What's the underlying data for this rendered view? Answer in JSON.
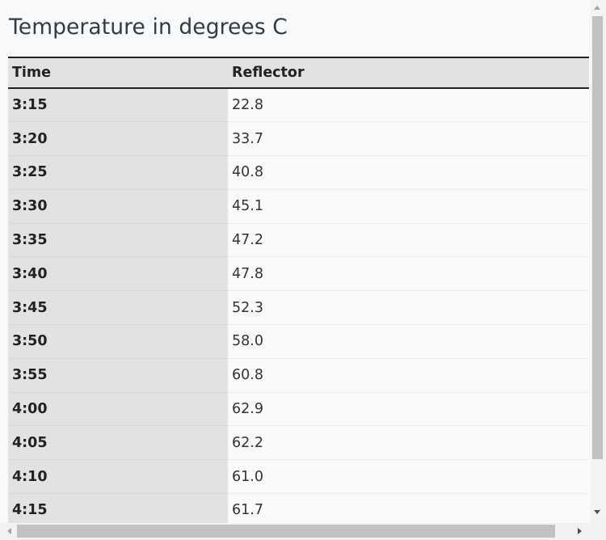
{
  "title": "Temperature in degrees C",
  "table": {
    "headers": [
      "Time",
      "Reflector"
    ],
    "rows": [
      {
        "time": "3:15",
        "reflector": "22.8"
      },
      {
        "time": "3:20",
        "reflector": "33.7"
      },
      {
        "time": "3:25",
        "reflector": "40.8"
      },
      {
        "time": "3:30",
        "reflector": "45.1"
      },
      {
        "time": "3:35",
        "reflector": "47.2"
      },
      {
        "time": "3:40",
        "reflector": "47.8"
      },
      {
        "time": "3:45",
        "reflector": "52.3"
      },
      {
        "time": "3:50",
        "reflector": "58.0"
      },
      {
        "time": "3:55",
        "reflector": "60.8"
      },
      {
        "time": "4:00",
        "reflector": "62.9"
      },
      {
        "time": "4:05",
        "reflector": "62.2"
      },
      {
        "time": "4:10",
        "reflector": "61.0"
      },
      {
        "time": "4:15",
        "reflector": "61.7"
      }
    ]
  },
  "icons": {
    "scroll_up": "chevron-up-icon",
    "scroll_down": "chevron-down-icon",
    "scroll_left": "chevron-left-icon",
    "scroll_right": "chevron-right-icon"
  },
  "colors": {
    "background": "#f8f9fa",
    "header_fill": "#e2e2e2",
    "time_column_fill": "#e2e2e2",
    "header_rule": "#222222",
    "scrollbar_thumb": "#c1c1c1"
  }
}
